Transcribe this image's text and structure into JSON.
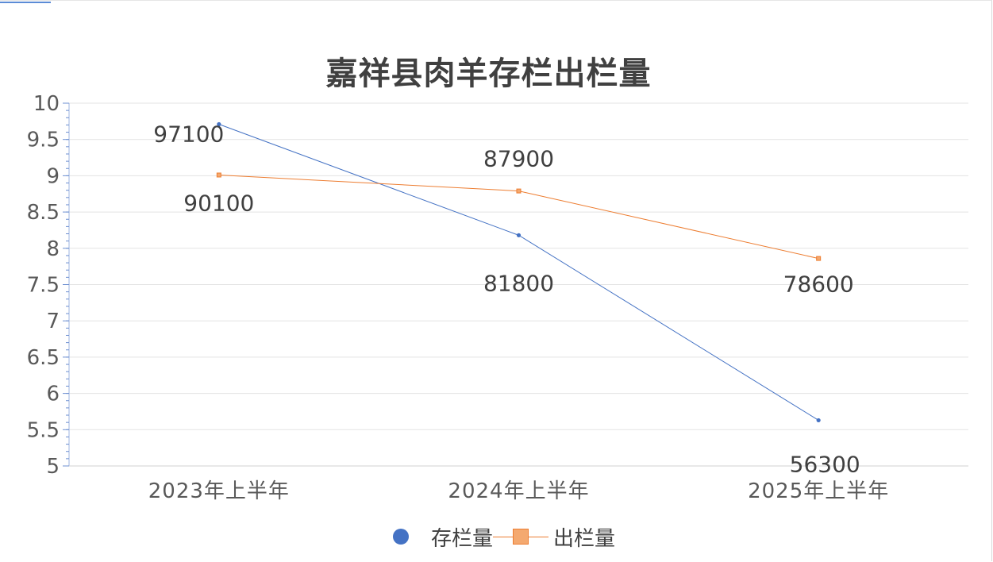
{
  "chart_data": {
    "type": "line",
    "title": "嘉祥县肉羊存栏出栏量",
    "categories": [
      "2023年上半年",
      "2024年上半年",
      "2025年上半年"
    ],
    "ylim": [
      5,
      10
    ],
    "yticks": [
      "5",
      "5.5",
      "6",
      "6.5",
      "7",
      "7.5",
      "8",
      "8.5",
      "9",
      "9.5",
      "10"
    ],
    "series": [
      {
        "name": "存栏量",
        "values": [
          9.71,
          8.18,
          5.63
        ],
        "labels": [
          "97100",
          "81800",
          "56300"
        ],
        "color": "#4472c4",
        "marker": "circle"
      },
      {
        "name": "出栏量",
        "values": [
          9.01,
          8.79,
          7.86
        ],
        "labels": [
          "90100",
          "87900",
          "78600"
        ],
        "color": "#ed7d31",
        "marker": "square"
      }
    ],
    "grid": true,
    "legend_position": "bottom"
  }
}
